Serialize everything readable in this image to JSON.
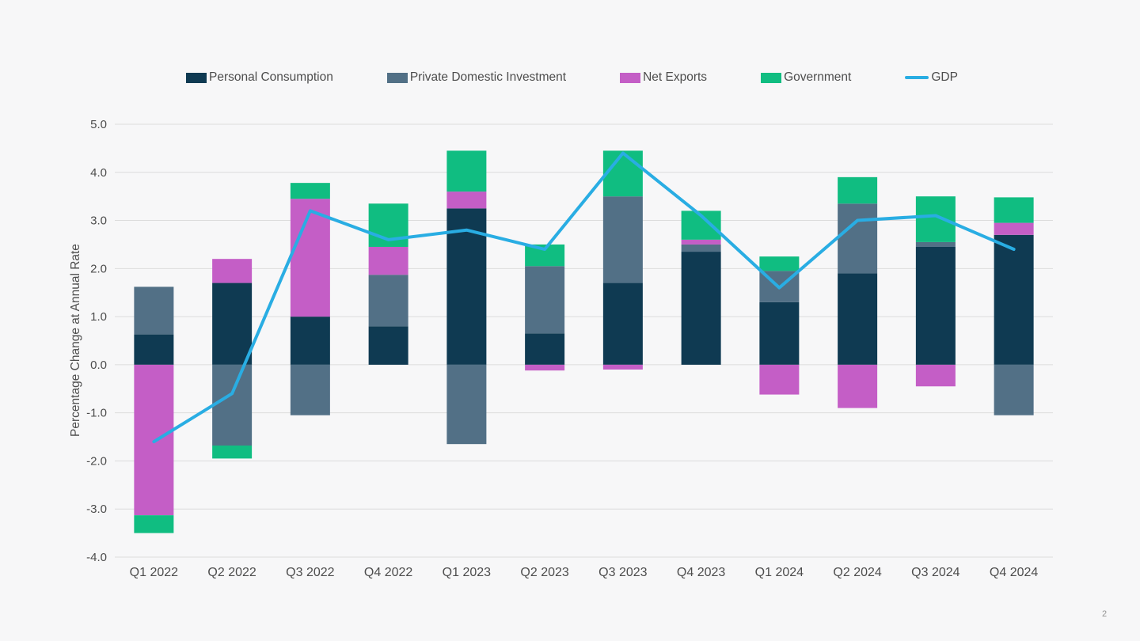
{
  "footer": {
    "page_number": "2"
  },
  "colors": {
    "background": "#f7f7f8",
    "gridline": "#dcdcdc",
    "text": "#4d4d4d",
    "page_number": "#939393"
  },
  "chart_data": {
    "type": "bar",
    "subtype": "stacked-bar-with-line",
    "title": "",
    "xlabel": "",
    "ylabel": "Percentage Change at Annual Rate",
    "ylim": [
      -4.0,
      5.0
    ],
    "ytick_step": 1.0,
    "grid": true,
    "legend_position": "top",
    "categories": [
      "Q1 2022",
      "Q2 2022",
      "Q3 2022",
      "Q4 2022",
      "Q1 2023",
      "Q2 2023",
      "Q3 2023",
      "Q4 2023",
      "Q1 2024",
      "Q2 2024",
      "Q3 2024",
      "Q4 2024"
    ],
    "series": [
      {
        "name": "Personal Consumption",
        "type": "bar",
        "color": "#0f3a52",
        "values": [
          0.63,
          1.7,
          1.0,
          0.8,
          3.25,
          0.65,
          1.7,
          2.35,
          1.3,
          1.9,
          2.45,
          2.7
        ]
      },
      {
        "name": "Private Domestic Investment",
        "type": "bar",
        "color": "#527086",
        "values": [
          0.99,
          -1.68,
          -1.05,
          1.07,
          -1.65,
          1.4,
          1.8,
          0.15,
          0.65,
          1.45,
          0.1,
          -1.05
        ]
      },
      {
        "name": "Net Exports",
        "type": "bar",
        "color": "#c45ec6",
        "values": [
          -3.13,
          0.5,
          2.45,
          0.58,
          0.35,
          -0.12,
          -0.1,
          0.1,
          -0.62,
          -0.9,
          -0.45,
          0.25
        ]
      },
      {
        "name": "Government",
        "type": "bar",
        "color": "#10bd81",
        "values": [
          -0.37,
          -0.27,
          0.33,
          0.9,
          0.85,
          0.45,
          0.95,
          0.6,
          0.3,
          0.55,
          0.95,
          0.53
        ]
      },
      {
        "name": "GDP",
        "type": "line",
        "color": "#29ade3",
        "values": [
          -1.6,
          -0.6,
          3.2,
          2.6,
          2.8,
          2.4,
          4.4,
          3.1,
          1.6,
          3.0,
          3.1,
          2.4
        ]
      }
    ]
  }
}
